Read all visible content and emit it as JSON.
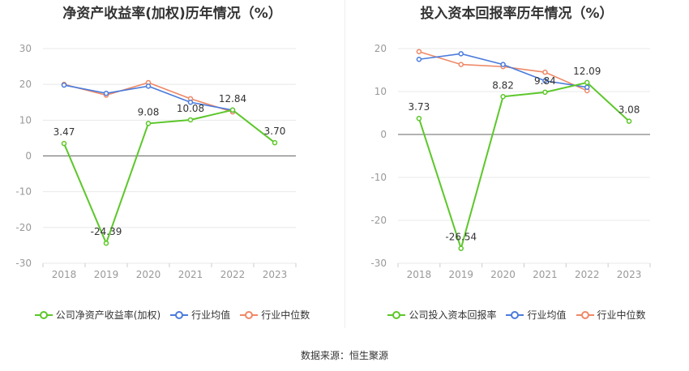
{
  "chart_data": [
    {
      "type": "line",
      "title": "净资产收益率(加权)历年情况（%）",
      "categories": [
        "2018",
        "2019",
        "2020",
        "2021",
        "2022",
        "2023"
      ],
      "ylim": [
        -30,
        30
      ],
      "yticks": [
        30,
        20,
        10,
        0,
        -10,
        -20,
        -30
      ],
      "grid": true,
      "legend_position": "bottom",
      "series": [
        {
          "name": "公司净资产收益率(加权)",
          "color": "#5CC72A",
          "values": [
            3.47,
            -24.39,
            9.08,
            10.08,
            12.84,
            3.7
          ],
          "labels": [
            "3.47",
            "-24.39",
            "9.08",
            "10.08",
            "12.84",
            "3.70"
          ]
        },
        {
          "name": "行业均值",
          "color": "#4A7BDC",
          "values": [
            19.8,
            17.5,
            19.5,
            15.0,
            12.8,
            null
          ]
        },
        {
          "name": "行业中位数",
          "color": "#EE8866",
          "values": [
            20.0,
            17.0,
            20.5,
            16.0,
            12.3,
            null
          ]
        }
      ]
    },
    {
      "type": "line",
      "title": "投入资本回报率历年情况（%）",
      "categories": [
        "2018",
        "2019",
        "2020",
        "2021",
        "2022",
        "2023"
      ],
      "ylim": [
        -30,
        20
      ],
      "yticks": [
        20,
        10,
        0,
        -10,
        -20,
        -30
      ],
      "grid": true,
      "legend_position": "bottom",
      "series": [
        {
          "name": "公司投入资本回报率",
          "color": "#5CC72A",
          "values": [
            3.73,
            -26.54,
            8.82,
            9.84,
            12.09,
            3.08
          ],
          "labels": [
            "3.73",
            "-26.54",
            "8.82",
            "9.84",
            "12.09",
            "3.08"
          ]
        },
        {
          "name": "行业均值",
          "color": "#4A7BDC",
          "values": [
            17.5,
            18.8,
            16.3,
            12.5,
            11.0,
            null
          ]
        },
        {
          "name": "行业中位数",
          "color": "#EE8866",
          "values": [
            19.3,
            16.3,
            15.8,
            14.5,
            10.2,
            null
          ]
        }
      ]
    }
  ],
  "footer": {
    "source": "数据来源：恒生聚源"
  }
}
